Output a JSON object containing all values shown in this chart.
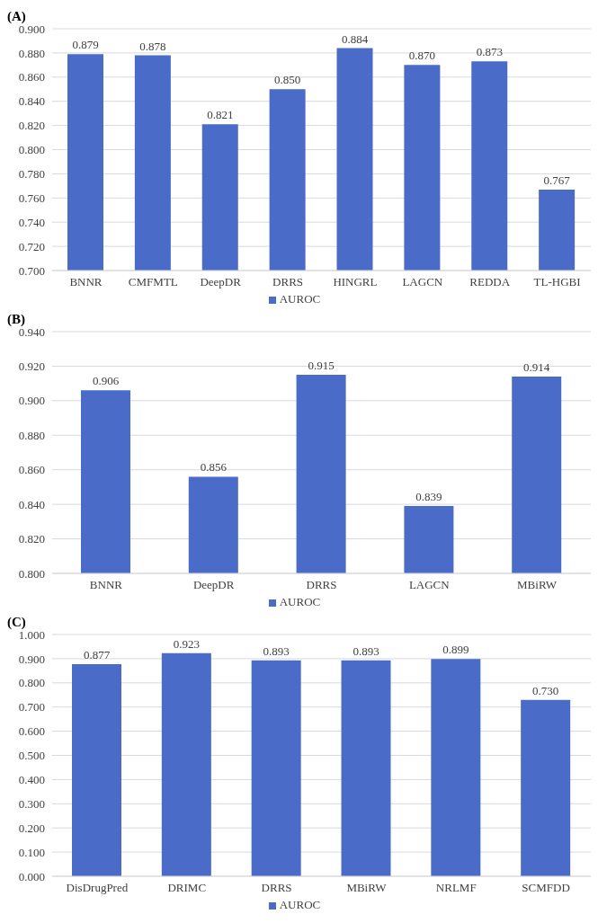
{
  "chart_data": [
    {
      "type": "bar",
      "title": "(A)",
      "categories": [
        "BNNR",
        "CMFMTL",
        "DeepDR",
        "DRRS",
        "HINGRL",
        "LAGCN",
        "REDDA",
        "TL-HGBI"
      ],
      "series": [
        {
          "name": "AUROC",
          "color": "#4a6bc8",
          "values": [
            0.879,
            0.878,
            0.821,
            0.85,
            0.884,
            0.87,
            0.873,
            0.767
          ],
          "value_labels": [
            "0.879",
            "0.878",
            "0.821",
            "0.850",
            "0.884",
            "0.870",
            "0.873",
            "0.767"
          ]
        }
      ],
      "ylim": [
        0.7,
        0.9
      ],
      "yticks": [
        {
          "value": 0.7,
          "label": "0.700"
        },
        {
          "value": 0.72,
          "label": "0.720"
        },
        {
          "value": 0.74,
          "label": "0.740"
        },
        {
          "value": 0.76,
          "label": "0.760"
        },
        {
          "value": 0.78,
          "label": "0.780"
        },
        {
          "value": 0.8,
          "label": "0.800"
        },
        {
          "value": 0.82,
          "label": "0.820"
        },
        {
          "value": 0.84,
          "label": "0.840"
        },
        {
          "value": 0.86,
          "label": "0.860"
        },
        {
          "value": 0.88,
          "label": "0.880"
        },
        {
          "value": 0.9,
          "label": "0.900"
        }
      ],
      "grid": "y",
      "legend": "bottom"
    },
    {
      "type": "bar",
      "title": "(B)",
      "categories": [
        "BNNR",
        "DeepDR",
        "DRRS",
        "LAGCN",
        "MBiRW"
      ],
      "series": [
        {
          "name": "AUROC",
          "color": "#4a6bc8",
          "values": [
            0.906,
            0.856,
            0.915,
            0.839,
            0.914
          ],
          "value_labels": [
            "0.906",
            "0.856",
            "0.915",
            "0.839",
            "0.914"
          ]
        }
      ],
      "ylim": [
        0.8,
        0.94
      ],
      "yticks": [
        {
          "value": 0.8,
          "label": "0.800"
        },
        {
          "value": 0.82,
          "label": "0.820"
        },
        {
          "value": 0.84,
          "label": "0.840"
        },
        {
          "value": 0.86,
          "label": "0.860"
        },
        {
          "value": 0.88,
          "label": "0.880"
        },
        {
          "value": 0.9,
          "label": "0.900"
        },
        {
          "value": 0.92,
          "label": "0.920"
        },
        {
          "value": 0.94,
          "label": "0.940"
        }
      ],
      "grid": "y",
      "legend": "bottom"
    },
    {
      "type": "bar",
      "title": "(C)",
      "categories": [
        "DisDrugPred",
        "DRIMC",
        "DRRS",
        "MBiRW",
        "NRLMF",
        "SCMFDD"
      ],
      "series": [
        {
          "name": "AUROC",
          "color": "#4a6bc8",
          "values": [
            0.877,
            0.923,
            0.893,
            0.893,
            0.899,
            0.73
          ],
          "value_labels": [
            "0.877",
            "0.923",
            "0.893",
            "0.893",
            "0.899",
            "0.730"
          ]
        }
      ],
      "ylim": [
        0,
        1
      ],
      "yticks": [
        {
          "value": 0,
          "label": "0.000"
        },
        {
          "value": 0.1,
          "label": "0.100"
        },
        {
          "value": 0.2,
          "label": "0.200"
        },
        {
          "value": 0.3,
          "label": "0.300"
        },
        {
          "value": 0.4,
          "label": "0.400"
        },
        {
          "value": 0.5,
          "label": "0.500"
        },
        {
          "value": 0.6,
          "label": "0.600"
        },
        {
          "value": 0.7,
          "label": "0.700"
        },
        {
          "value": 0.8,
          "label": "0.800"
        },
        {
          "value": 0.9,
          "label": "0.900"
        },
        {
          "value": 1,
          "label": "1.000"
        }
      ],
      "grid": "y",
      "legend": "bottom"
    }
  ]
}
